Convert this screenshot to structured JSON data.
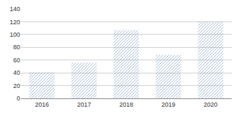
{
  "chart_data": {
    "type": "bar",
    "categories": [
      "2016",
      "2017",
      "2018",
      "2019",
      "2020"
    ],
    "values": [
      41,
      56,
      107,
      68,
      120
    ],
    "color": "#1d4f80",
    "ylim": [
      0,
      140
    ],
    "yticks": [
      0,
      20,
      40,
      60,
      80,
      100,
      120,
      140
    ],
    "grid": true
  }
}
